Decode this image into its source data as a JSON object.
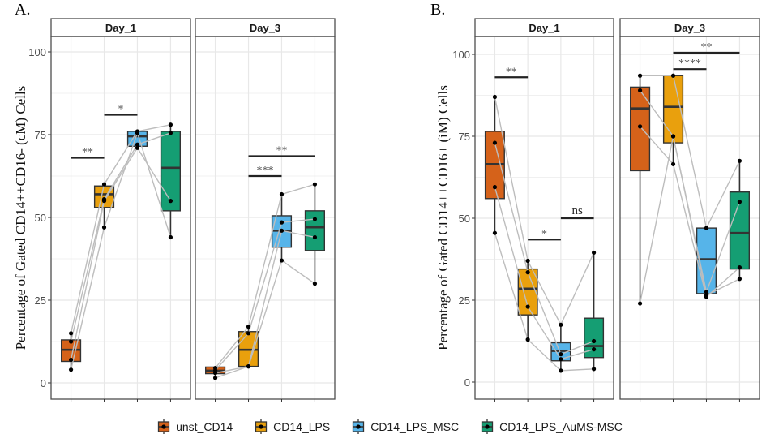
{
  "chart_data": [
    {
      "type": "box",
      "panel_label": "A.",
      "ylabel": "Percentage of Gated CD14++CD16- (cM) Cells",
      "ylim": [
        -4,
        106
      ],
      "yticks": [
        0,
        25,
        50,
        75,
        100
      ],
      "grid": true,
      "facets": [
        {
          "title": "Day_1",
          "groups": [
            {
              "name": "unst_CD14",
              "q1": 6.5,
              "median": 10,
              "q3": 13,
              "min": 4,
              "max": 15,
              "points": [
                15,
                12.5,
                7,
                4
              ]
            },
            {
              "name": "CD14_LPS",
              "q1": 53,
              "median": 57,
              "q3": 59.5,
              "min": 47,
              "max": 60,
              "points": [
                60,
                55.5,
                55,
                47
              ]
            },
            {
              "name": "CD14_LPS_MSC",
              "q1": 71.5,
              "median": 74.5,
              "q3": 76,
              "min": 71,
              "max": 76,
              "points": [
                76,
                72,
                71,
                75.5
              ]
            },
            {
              "name": "CD14_LPS_AuMS-MSC",
              "q1": 52,
              "median": 65,
              "q3": 76,
              "min": 44,
              "max": 78,
              "points": [
                78,
                75.5,
                55,
                44
              ]
            }
          ],
          "pairs": [
            [
              0,
              1
            ],
            [
              1,
              2
            ],
            [
              2,
              3
            ],
            [
              3,
              0
            ]
          ],
          "significance": [
            {
              "from": "unst_CD14",
              "to": "CD14_LPS",
              "y": 68,
              "label": "**"
            },
            {
              "from": "CD14_LPS",
              "to": "CD14_LPS_MSC",
              "y": 81,
              "label": "*"
            }
          ]
        },
        {
          "title": "Day_3",
          "groups": [
            {
              "name": "unst_CD14",
              "q1": 2.8,
              "median": 3.7,
              "q3": 4.8,
              "min": 1.5,
              "max": 4.8,
              "points": [
                4.5,
                3.8,
                3,
                1.5
              ]
            },
            {
              "name": "CD14_LPS",
              "q1": 5,
              "median": 10,
              "q3": 15.5,
              "min": 5,
              "max": 17,
              "points": [
                17,
                15,
                5,
                5
              ]
            },
            {
              "name": "CD14_LPS_MSC",
              "q1": 41,
              "median": 46,
              "q3": 50.5,
              "min": 37,
              "max": 57,
              "points": [
                57,
                48.5,
                46,
                37
              ]
            },
            {
              "name": "CD14_LPS_AuMS-MSC",
              "q1": 40,
              "median": 47,
              "q3": 52,
              "min": 30,
              "max": 60,
              "points": [
                60,
                49.5,
                44,
                30
              ]
            }
          ],
          "significance": [
            {
              "from": "CD14_LPS",
              "to": "CD14_LPS_MSC",
              "y": 62.5,
              "label": "***"
            },
            {
              "from": "CD14_LPS",
              "to": "CD14_LPS_AuMS-MSC",
              "y": 68.5,
              "label": "**"
            }
          ]
        }
      ]
    },
    {
      "type": "box",
      "panel_label": "B.",
      "ylabel": "Percentage of Gated CD14++CD16+ (iM) Cells",
      "ylim": [
        -4,
        106
      ],
      "yticks": [
        0,
        25,
        50,
        75,
        100
      ],
      "grid": true,
      "facets": [
        {
          "title": "Day_1",
          "groups": [
            {
              "name": "unst_CD14",
              "q1": 56,
              "median": 66.5,
              "q3": 76.5,
              "min": 45.5,
              "max": 87,
              "points": [
                87,
                73,
                59.5,
                45.5
              ]
            },
            {
              "name": "CD14_LPS",
              "q1": 20.5,
              "median": 28.5,
              "q3": 34.5,
              "min": 13,
              "max": 37,
              "points": [
                37,
                33.5,
                23,
                13
              ]
            },
            {
              "name": "CD14_LPS_MSC",
              "q1": 6.5,
              "median": 9.5,
              "q3": 12,
              "min": 3.5,
              "max": 17.5,
              "points": [
                17.5,
                8.5,
                7,
                3.5
              ]
            },
            {
              "name": "CD14_LPS_AuMS-MSC",
              "q1": 7.5,
              "median": 11,
              "q3": 19.5,
              "min": 4,
              "max": 39.5,
              "points": [
                39.5,
                12.5,
                10,
                4
              ]
            }
          ],
          "significance": [
            {
              "from": "unst_CD14",
              "to": "CD14_LPS",
              "y": 93,
              "label": "**"
            },
            {
              "from": "CD14_LPS",
              "to": "CD14_LPS_MSC",
              "y": 43.5,
              "label": "*"
            },
            {
              "from": "CD14_LPS_MSC",
              "to": "CD14_LPS_AuMS-MSC",
              "y": 50,
              "label": "ns"
            }
          ]
        },
        {
          "title": "Day_3",
          "groups": [
            {
              "name": "unst_CD14",
              "q1": 64.5,
              "median": 83.5,
              "q3": 90,
              "min": 24,
              "max": 93.5,
              "points": [
                93.5,
                89,
                78,
                24
              ]
            },
            {
              "name": "CD14_LPS",
              "q1": 73,
              "median": 84,
              "q3": 93.5,
              "min": 66.5,
              "max": 93.5,
              "points": [
                93.5,
                75,
                66.5,
                75
              ]
            },
            {
              "name": "CD14_LPS_MSC",
              "q1": 27,
              "median": 37.5,
              "q3": 47,
              "min": 26,
              "max": 47,
              "points": [
                47,
                27.5,
                26,
                26.5
              ]
            },
            {
              "name": "CD14_LPS_AuMS-MSC",
              "q1": 34.5,
              "median": 45.5,
              "q3": 58,
              "min": 31.5,
              "max": 67.5,
              "points": [
                67.5,
                55,
                35,
                31.5
              ]
            }
          ],
          "significance": [
            {
              "from": "CD14_LPS",
              "to": "CD14_LPS_MSC",
              "y": 95.5,
              "label": "****"
            },
            {
              "from": "CD14_LPS",
              "to": "CD14_LPS_AuMS-MSC",
              "y": 100.5,
              "label": "**"
            }
          ]
        }
      ]
    }
  ],
  "legend": {
    "position": "bottom",
    "items": [
      {
        "label": "unst_CD14",
        "color": "#d5621a"
      },
      {
        "label": "CD14_LPS",
        "color": "#e9a00d"
      },
      {
        "label": "CD14_LPS_MSC",
        "color": "#56b4e9"
      },
      {
        "label": "CD14_LPS_AuMS-MSC",
        "color": "#159e73"
      }
    ]
  }
}
